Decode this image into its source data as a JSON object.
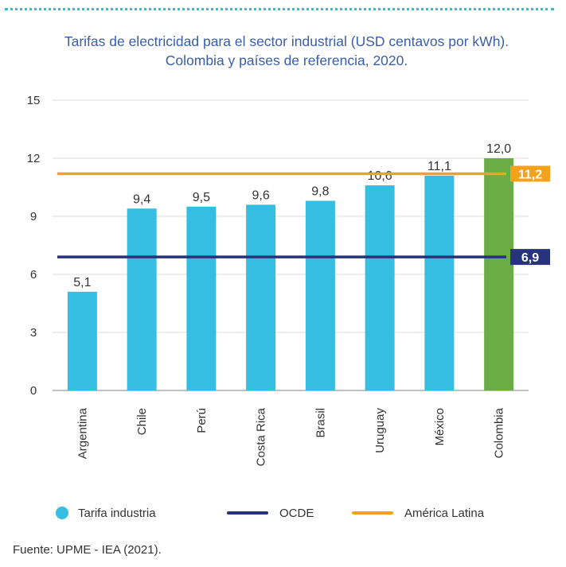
{
  "title": "Tarifas de electricidad para el sector industrial (USD centavos por kWh). Colombia y países de referencia, 2020.",
  "source": "Fuente: UPME - IEA (2021).",
  "legend": {
    "tarifa": "Tarifa industria",
    "ocde": "OCDE",
    "latam": "América Latina"
  },
  "chart_data": {
    "type": "bar",
    "categories": [
      "Argentina",
      "Chile",
      "Perú",
      "Costa Rica",
      "Brasil",
      "Uruguay",
      "México",
      "Colombia"
    ],
    "values": [
      5.1,
      9.4,
      9.5,
      9.6,
      9.8,
      10.6,
      11.1,
      12.0
    ],
    "value_labels": [
      "5,1",
      "9,4",
      "9,5",
      "9,6",
      "9,8",
      "10,6",
      "11,1",
      "12,0"
    ],
    "yticks": [
      0,
      3,
      6,
      9,
      12,
      15
    ],
    "ylim": [
      0,
      15
    ],
    "grid": true,
    "reference_lines": [
      {
        "name": "OCDE",
        "value": 6.9,
        "label": "6,9",
        "color": "#27337a"
      },
      {
        "name": "América Latina",
        "value": 11.2,
        "label": "11,2",
        "color": "#f5a21a"
      }
    ],
    "colors": {
      "bar": "#36bde2",
      "highlight": "#6aad45",
      "highlight_index": 7
    }
  }
}
